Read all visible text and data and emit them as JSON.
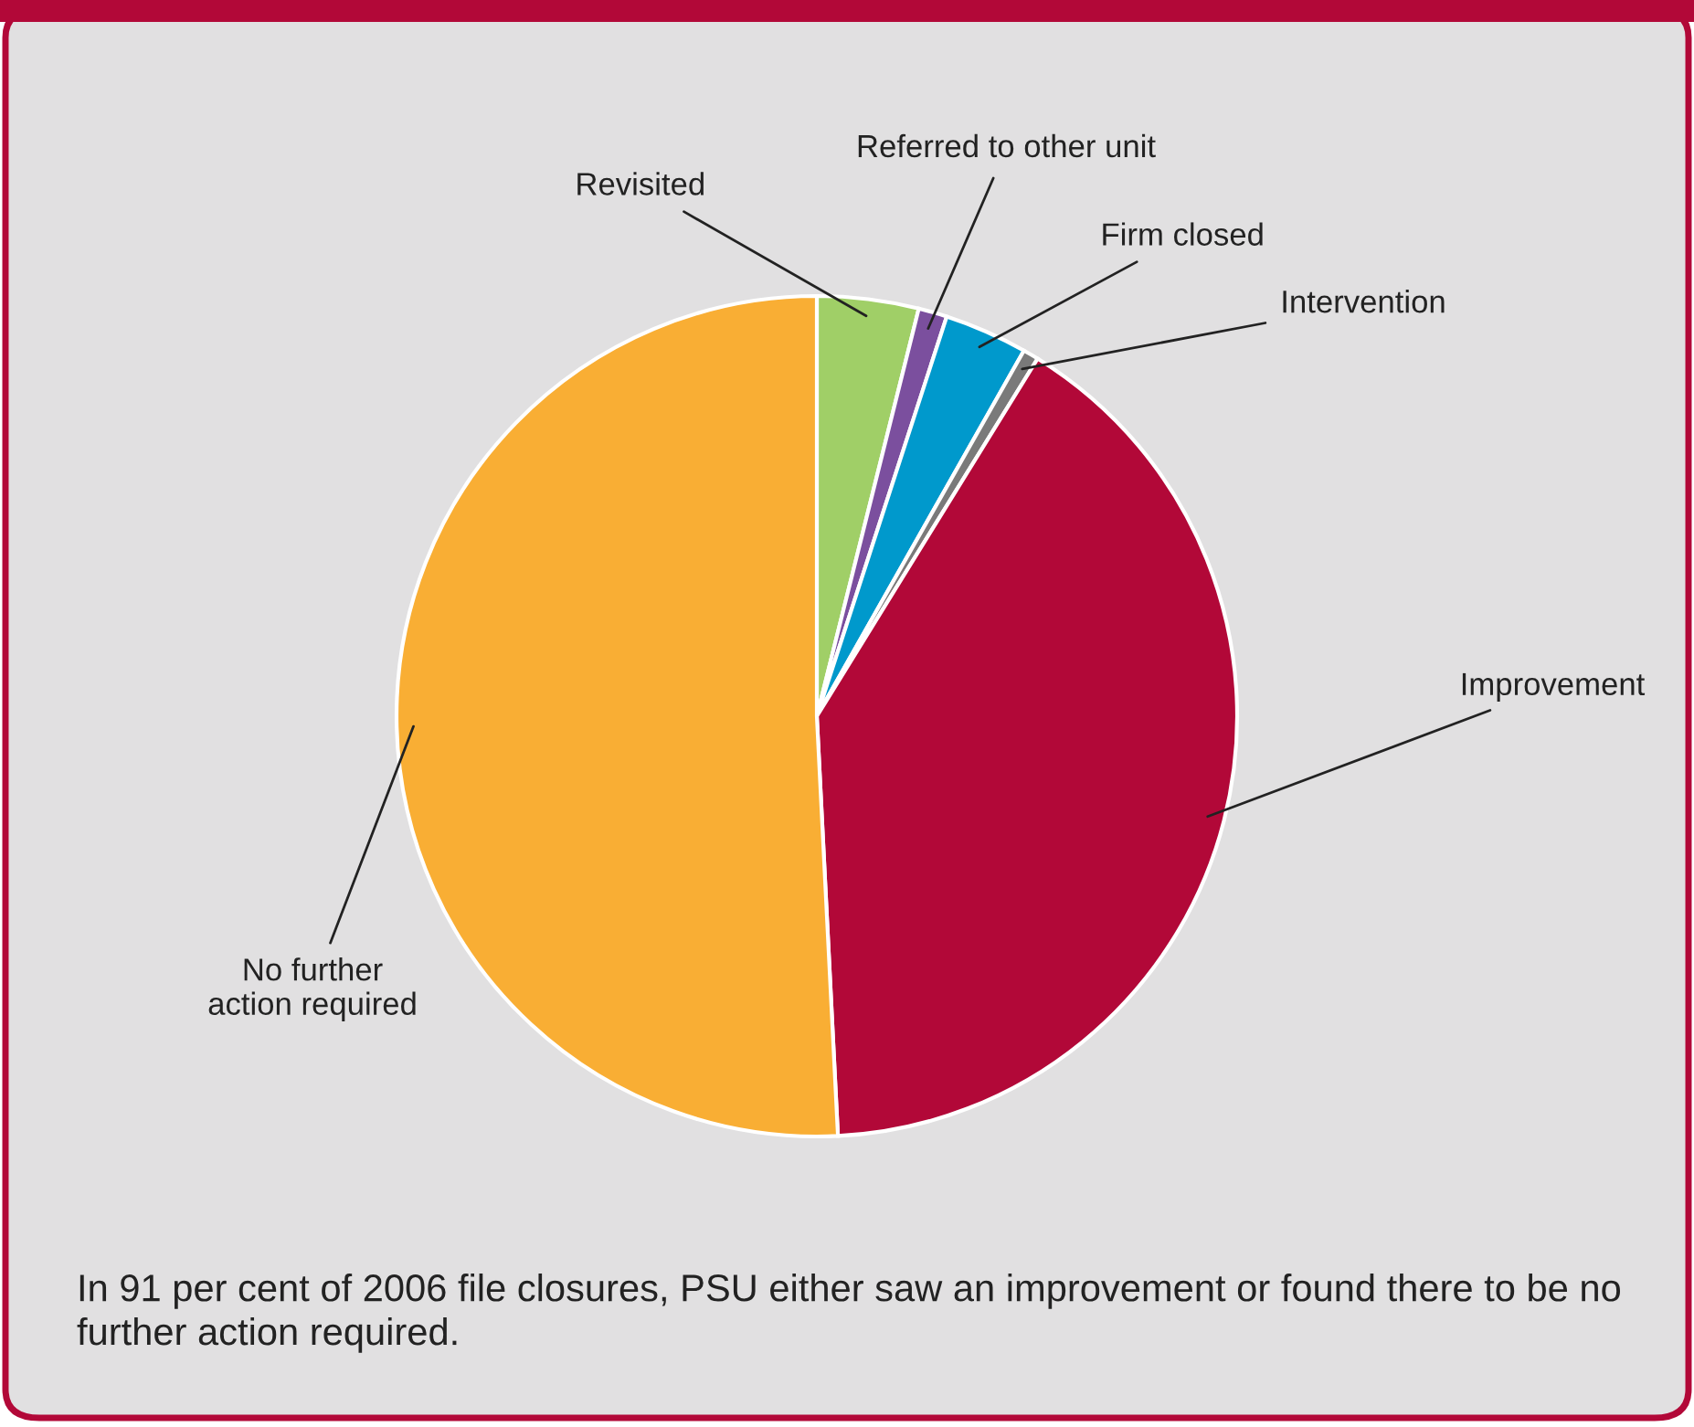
{
  "chart_data": {
    "type": "pie",
    "categories": [
      "Revisited",
      "Referred to other unit",
      "Firm closed",
      "Intervention",
      "Improvement",
      "No further\naction required"
    ],
    "values": [
      3.9,
      1.1,
      3.2,
      0.6,
      40.4,
      50.8
    ],
    "colors": [
      "#a0cf67",
      "#7b4f9e",
      "#0099cc",
      "#7a7a7a",
      "#b20838",
      "#f9ae34"
    ],
    "annotations": [
      "In 91 per cent of 2006 file closures, PSU either saw an improvement or found there to be no further action required."
    ]
  }
}
